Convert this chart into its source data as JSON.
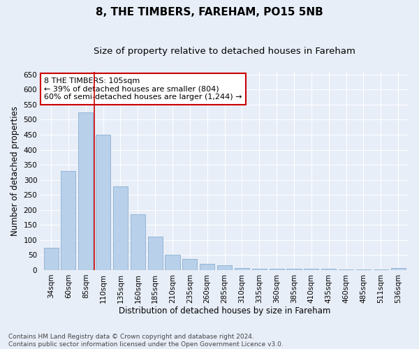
{
  "title": "8, THE TIMBERS, FAREHAM, PO15 5NB",
  "subtitle": "Size of property relative to detached houses in Fareham",
  "xlabel": "Distribution of detached houses by size in Fareham",
  "ylabel": "Number of detached properties",
  "categories": [
    "34sqm",
    "60sqm",
    "85sqm",
    "110sqm",
    "135sqm",
    "160sqm",
    "185sqm",
    "210sqm",
    "235sqm",
    "260sqm",
    "285sqm",
    "310sqm",
    "335sqm",
    "360sqm",
    "385sqm",
    "410sqm",
    "435sqm",
    "460sqm",
    "485sqm",
    "511sqm",
    "536sqm"
  ],
  "values": [
    75,
    330,
    525,
    450,
    278,
    185,
    112,
    50,
    37,
    20,
    15,
    7,
    5,
    5,
    5,
    5,
    5,
    2,
    2,
    2,
    7
  ],
  "bar_color": "#b8d0ea",
  "bar_edge_color": "#8ab0d0",
  "vline_color": "#cc0000",
  "vline_x_index": 3,
  "annotation_text": "8 THE TIMBERS: 105sqm\n← 39% of detached houses are smaller (804)\n60% of semi-detached houses are larger (1,244) →",
  "annotation_box_color": "white",
  "annotation_box_edge_color": "#cc0000",
  "ylim": [
    0,
    660
  ],
  "yticks": [
    0,
    50,
    100,
    150,
    200,
    250,
    300,
    350,
    400,
    450,
    500,
    550,
    600,
    650
  ],
  "bg_color": "#e8eef8",
  "grid_color": "#ffffff",
  "footer_line1": "Contains HM Land Registry data © Crown copyright and database right 2024.",
  "footer_line2": "Contains public sector information licensed under the Open Government Licence v3.0.",
  "title_fontsize": 11,
  "subtitle_fontsize": 9.5,
  "xlabel_fontsize": 8.5,
  "ylabel_fontsize": 8.5,
  "tick_fontsize": 7.5,
  "annotation_fontsize": 8,
  "footer_fontsize": 6.5,
  "footer_color": "#444444"
}
